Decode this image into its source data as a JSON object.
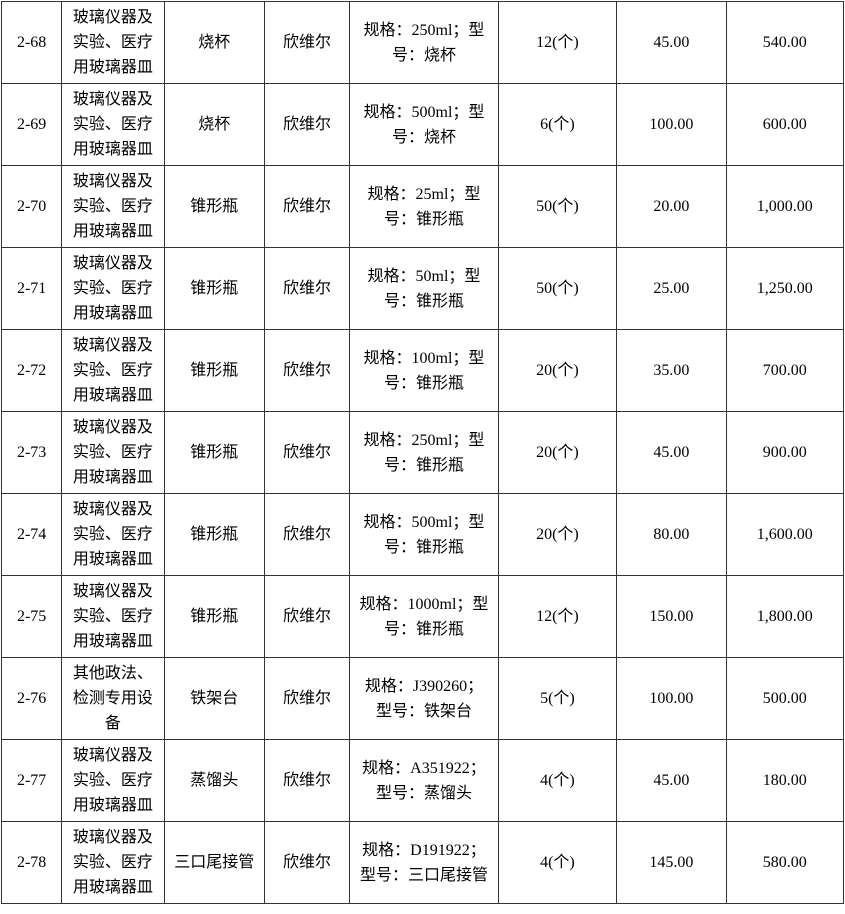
{
  "table": {
    "rows": [
      {
        "id": "2-68",
        "category": "玻璃仪器及\n实验、医疗\n用玻璃器皿",
        "name": "烧杯",
        "brand": "欣维尔",
        "spec": "规格：250ml；型\n号：烧杯",
        "qty": "12(个)",
        "unit_price": "45.00",
        "total": "540.00"
      },
      {
        "id": "2-69",
        "category": "玻璃仪器及\n实验、医疗\n用玻璃器皿",
        "name": "烧杯",
        "brand": "欣维尔",
        "spec": "规格：500ml；型\n号：烧杯",
        "qty": "6(个)",
        "unit_price": "100.00",
        "total": "600.00"
      },
      {
        "id": "2-70",
        "category": "玻璃仪器及\n实验、医疗\n用玻璃器皿",
        "name": "锥形瓶",
        "brand": "欣维尔",
        "spec": "规格：25ml；型\n号：锥形瓶",
        "qty": "50(个)",
        "unit_price": "20.00",
        "total": "1,000.00"
      },
      {
        "id": "2-71",
        "category": "玻璃仪器及\n实验、医疗\n用玻璃器皿",
        "name": "锥形瓶",
        "brand": "欣维尔",
        "spec": "规格：50ml；型\n号：锥形瓶",
        "qty": "50(个)",
        "unit_price": "25.00",
        "total": "1,250.00"
      },
      {
        "id": "2-72",
        "category": "玻璃仪器及\n实验、医疗\n用玻璃器皿",
        "name": "锥形瓶",
        "brand": "欣维尔",
        "spec": "规格：100ml；型\n号：锥形瓶",
        "qty": "20(个)",
        "unit_price": "35.00",
        "total": "700.00"
      },
      {
        "id": "2-73",
        "category": "玻璃仪器及\n实验、医疗\n用玻璃器皿",
        "name": "锥形瓶",
        "brand": "欣维尔",
        "spec": "规格：250ml；型\n号：锥形瓶",
        "qty": "20(个)",
        "unit_price": "45.00",
        "total": "900.00"
      },
      {
        "id": "2-74",
        "category": "玻璃仪器及\n实验、医疗\n用玻璃器皿",
        "name": "锥形瓶",
        "brand": "欣维尔",
        "spec": "规格：500ml；型\n号：锥形瓶",
        "qty": "20(个)",
        "unit_price": "80.00",
        "total": "1,600.00"
      },
      {
        "id": "2-75",
        "category": "玻璃仪器及\n实验、医疗\n用玻璃器皿",
        "name": "锥形瓶",
        "brand": "欣维尔",
        "spec": "规格：1000ml；型\n号：锥形瓶",
        "qty": "12(个)",
        "unit_price": "150.00",
        "total": "1,800.00"
      },
      {
        "id": "2-76",
        "category": "其他政法、\n检测专用设\n备",
        "name": "铁架台",
        "brand": "欣维尔",
        "spec": "规格：J390260；\n型号：铁架台",
        "qty": "5(个)",
        "unit_price": "100.00",
        "total": "500.00"
      },
      {
        "id": "2-77",
        "category": "玻璃仪器及\n实验、医疗\n用玻璃器皿",
        "name": "蒸馏头",
        "brand": "欣维尔",
        "spec": "规格：A351922；\n型号：蒸馏头",
        "qty": "4(个)",
        "unit_price": "45.00",
        "total": "180.00"
      },
      {
        "id": "2-78",
        "category": "玻璃仪器及\n实验、医疗\n用玻璃器皿",
        "name": "三口尾接管",
        "brand": "欣维尔",
        "spec": "规格：D191922；\n型号：三口尾接管",
        "qty": "4(个)",
        "unit_price": "145.00",
        "total": "580.00"
      }
    ]
  }
}
